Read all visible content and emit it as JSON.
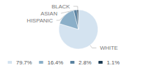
{
  "chart_data": {
    "type": "pie",
    "categories": [
      "WHITE",
      "HISPANIC",
      "ASIAN",
      "BLACK"
    ],
    "values": [
      79.7,
      16.4,
      2.8,
      1.1
    ],
    "value_labels": [
      "79.7%",
      "16.4%",
      "2.8%",
      "1.1%"
    ],
    "colors": [
      "#d4e3f0",
      "#8bafc8",
      "#5a82a0",
      "#1b3a52"
    ],
    "legend": "lower left"
  }
}
